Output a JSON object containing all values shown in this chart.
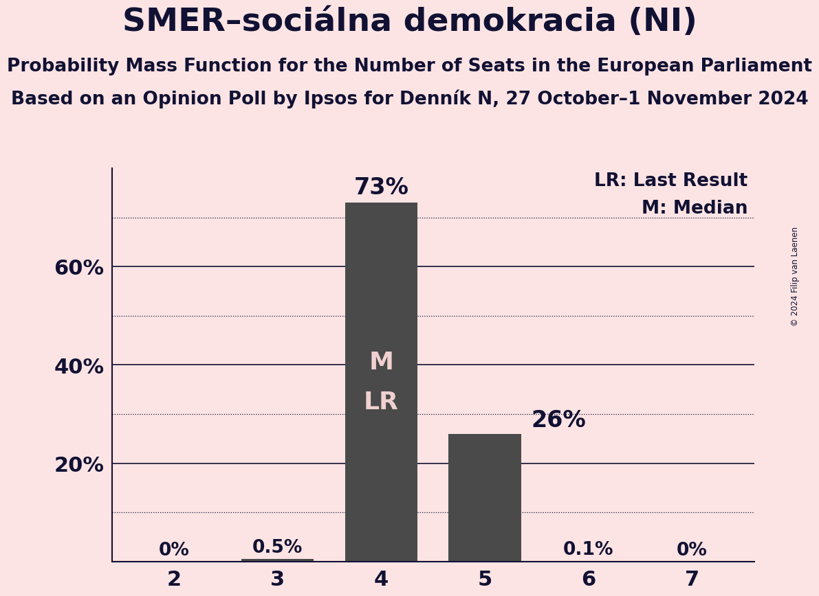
{
  "title": "SMER–sociálna demokracia (NI)",
  "subtitle1": "Probability Mass Function for the Number of Seats in the European Parliament",
  "subtitle2": "Based on an Opinion Poll by Ipsos for Denník N, 27 October–1 November 2024",
  "copyright": "© 2024 Filip van Laenen",
  "categories": [
    2,
    3,
    4,
    5,
    6,
    7
  ],
  "values": [
    0.0,
    0.005,
    0.73,
    0.26,
    0.001,
    0.0
  ],
  "labels": [
    "0%",
    "0.5%",
    "73%",
    "26%",
    "0.1%",
    "0%"
  ],
  "bar_color": "#4a4a4a",
  "background_color": "#fce4e4",
  "text_color": "#111133",
  "bar_label_color_inside": "#f0d0d0",
  "median": 4,
  "last_result": 4,
  "legend_lr": "LR: Last Result",
  "legend_m": "M: Median",
  "ylim": [
    0,
    0.8
  ],
  "yticks": [
    0.0,
    0.2,
    0.4,
    0.6
  ],
  "ytick_labels": [
    "",
    "20%",
    "40%",
    "60%"
  ],
  "solid_gridlines": [
    0.2,
    0.4,
    0.6
  ],
  "dotted_gridlines": [
    0.1,
    0.3,
    0.5,
    0.7
  ],
  "title_fontsize": 34,
  "subtitle_fontsize": 19,
  "label_fontsize_small": 19,
  "label_fontsize_large": 24,
  "tick_fontsize": 22,
  "legend_fontsize": 19,
  "inside_label_fontsize": 26
}
